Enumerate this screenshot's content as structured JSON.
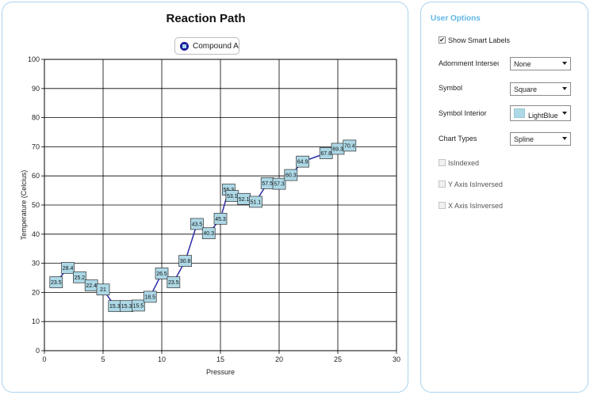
{
  "chart": {
    "title": "Reaction Path",
    "legend_label": "Compound A"
  },
  "options": {
    "title": "User Options",
    "show_smart_labels": "Show Smart Labels",
    "adornment_label": "Adornment Intersec",
    "adornment_value": "None",
    "symbol_label": "Symbol",
    "symbol_value": "Square",
    "symbol_interior_label": "Symbol Interior",
    "symbol_interior_value": "LightBlue",
    "symbol_interior_color": "#add8e6",
    "chart_types_label": "Chart Types",
    "chart_types_value": "Spline",
    "is_indexed": "IsIndexed",
    "y_inversed": "Y Axis IsInversed",
    "x_inversed": "X Axis IsInversed"
  },
  "chart_data": {
    "type": "line",
    "title": "Reaction Path",
    "xlabel": "Pressure",
    "ylabel": "Temperature (Celcius)",
    "xlim": [
      0,
      30
    ],
    "ylim": [
      0,
      100
    ],
    "xticks": [
      "0",
      "5",
      "10",
      "15",
      "20",
      "25",
      "30"
    ],
    "yticks": [
      "0",
      "10",
      "20",
      "30",
      "40",
      "50",
      "60",
      "70",
      "80",
      "90",
      "100"
    ],
    "grid": true,
    "line_color": "#2a2aa8",
    "marker_fill": "#add8e6",
    "series": [
      {
        "name": "Compound A",
        "points": [
          {
            "x": 1,
            "y": 23.5,
            "label": "23.5"
          },
          {
            "x": 2,
            "y": 28.4,
            "label": "28.4"
          },
          {
            "x": 3,
            "y": 25.2,
            "label": "25.2"
          },
          {
            "x": 4,
            "y": 22.4,
            "label": "22.4"
          },
          {
            "x": 5,
            "y": 21,
            "label": "21"
          },
          {
            "x": 6,
            "y": 15.3,
            "label": "15.3"
          },
          {
            "x": 7,
            "y": 15.3,
            "label": "15.3"
          },
          {
            "x": 8,
            "y": 15.5,
            "label": "15.5"
          },
          {
            "x": 9,
            "y": 18.5,
            "label": "18.5"
          },
          {
            "x": 10,
            "y": 26.5,
            "label": "26.5"
          },
          {
            "x": 11,
            "y": 23.5,
            "label": "23.5"
          },
          {
            "x": 12,
            "y": 30.8,
            "label": "30.8"
          },
          {
            "x": 13,
            "y": 43.5,
            "label": "43.5"
          },
          {
            "x": 14,
            "y": 40.3,
            "label": "40.3"
          },
          {
            "x": 15,
            "y": 45.3,
            "label": "45.3"
          },
          {
            "x": 15.7,
            "y": 55.3,
            "label": "55.3"
          },
          {
            "x": 16,
            "y": 53.1,
            "label": "53.1"
          },
          {
            "x": 17,
            "y": 52.1,
            "label": "52.1"
          },
          {
            "x": 18,
            "y": 51.1,
            "label": "51.1"
          },
          {
            "x": 19,
            "y": 57.5,
            "label": "57.5"
          },
          {
            "x": 20,
            "y": 57.3,
            "label": "57.3"
          },
          {
            "x": 21,
            "y": 60.3,
            "label": "60.3"
          },
          {
            "x": 22,
            "y": 64.9,
            "label": "64.9"
          },
          {
            "x": 24,
            "y": 67.8,
            "label": "67.8"
          },
          {
            "x": 25,
            "y": 69.3,
            "label": "69.3"
          },
          {
            "x": 26,
            "y": 70.4,
            "label": "70.4"
          }
        ]
      }
    ]
  }
}
